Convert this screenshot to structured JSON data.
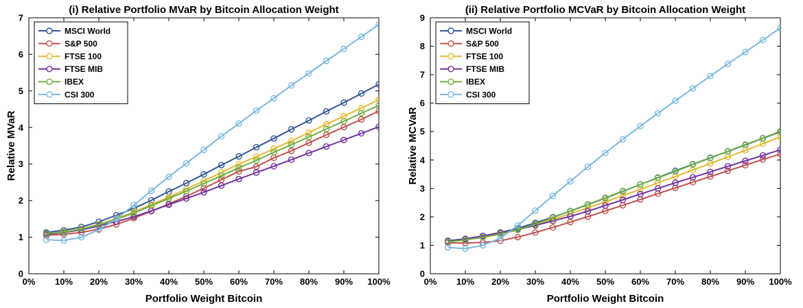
{
  "chart_data": [
    {
      "type": "line",
      "title": "(i) Relative Portfolio MVaR by Bitcoin Allocation Weight",
      "xlabel": "Portfolio Weight Bitcoin",
      "ylabel": "Relative MVaR",
      "xlim": [
        0,
        100
      ],
      "ylim": [
        0,
        7
      ],
      "xticks": [
        0,
        10,
        20,
        30,
        40,
        50,
        60,
        70,
        80,
        90,
        100
      ],
      "xtick_labels": [
        "0%",
        "10%",
        "20%",
        "30%",
        "40%",
        "50%",
        "60%",
        "70%",
        "80%",
        "90%",
        "100%"
      ],
      "yticks": [
        0,
        1,
        2,
        3,
        4,
        5,
        6,
        7
      ],
      "ytick_labels": [
        "0",
        "1",
        "2",
        "3",
        "4",
        "5",
        "6",
        "7"
      ],
      "grid": false,
      "legend_position": "top-left",
      "x": [
        5,
        10,
        15,
        20,
        25,
        30,
        35,
        40,
        45,
        50,
        55,
        60,
        65,
        70,
        75,
        80,
        85,
        90,
        95,
        100
      ],
      "series": [
        {
          "name": "MSCI World",
          "color": "#2f5597",
          "values": [
            1.13,
            1.19,
            1.28,
            1.42,
            1.6,
            1.79,
            2.01,
            2.25,
            2.48,
            2.72,
            2.97,
            3.21,
            3.46,
            3.7,
            3.95,
            4.19,
            4.44,
            4.68,
            4.93,
            5.18
          ]
        },
        {
          "name": "S&P 500",
          "color": "#c0504d",
          "values": [
            1.05,
            1.08,
            1.13,
            1.22,
            1.35,
            1.52,
            1.71,
            1.91,
            2.12,
            2.34,
            2.57,
            2.8,
            2.93,
            3.17,
            3.36,
            3.58,
            3.8,
            4.01,
            4.22,
            4.45
          ]
        },
        {
          "name": "FTSE 100",
          "color": "#e5b931",
          "values": [
            1.1,
            1.15,
            1.23,
            1.35,
            1.51,
            1.69,
            1.89,
            2.1,
            2.32,
            2.54,
            2.77,
            3.0,
            3.2,
            3.42,
            3.63,
            3.86,
            4.09,
            4.31,
            4.53,
            4.76
          ]
        },
        {
          "name": "FTSE MIB",
          "color": "#7030a0",
          "values": [
            1.08,
            1.13,
            1.2,
            1.31,
            1.43,
            1.56,
            1.72,
            1.89,
            2.06,
            2.23,
            2.41,
            2.59,
            2.77,
            2.94,
            3.12,
            3.3,
            3.48,
            3.66,
            3.84,
            4.02
          ]
        },
        {
          "name": "IBEX",
          "color": "#70ad47",
          "values": [
            1.1,
            1.14,
            1.22,
            1.34,
            1.49,
            1.66,
            1.86,
            2.06,
            2.26,
            2.47,
            2.68,
            2.9,
            3.1,
            3.32,
            3.53,
            3.74,
            3.96,
            4.17,
            4.39,
            4.6
          ]
        },
        {
          "name": "CSI 300",
          "color": "#7ab8e0",
          "values": [
            0.93,
            0.91,
            1.0,
            1.2,
            1.5,
            1.88,
            2.27,
            2.65,
            3.02,
            3.39,
            3.76,
            4.11,
            4.46,
            4.8,
            5.15,
            5.48,
            5.82,
            6.15,
            6.48,
            6.82
          ]
        }
      ]
    },
    {
      "type": "line",
      "title": "(ii) Relative Portfolio MCVaR by Bitcoin Allocation Weight",
      "xlabel": "Portfolio Weight Bitcoin",
      "ylabel": "Relative MCVaR",
      "xlim": [
        0,
        100
      ],
      "ylim": [
        0,
        9
      ],
      "xticks": [
        0,
        10,
        20,
        30,
        40,
        50,
        60,
        70,
        80,
        90,
        100
      ],
      "xtick_labels": [
        "0%",
        "10%",
        "20%",
        "30%",
        "40%",
        "50%",
        "60%",
        "70%",
        "80%",
        "90%",
        "100%"
      ],
      "yticks": [
        0,
        1,
        2,
        3,
        4,
        5,
        6,
        7,
        8,
        9
      ],
      "ytick_labels": [
        "0",
        "1",
        "2",
        "3",
        "4",
        "5",
        "6",
        "7",
        "8",
        "9"
      ],
      "grid": false,
      "legend_position": "top-left",
      "x": [
        5,
        10,
        15,
        20,
        25,
        30,
        35,
        40,
        45,
        50,
        55,
        60,
        65,
        70,
        75,
        80,
        85,
        90,
        95,
        100
      ],
      "series": [
        {
          "name": "MSCI World",
          "color": "#2f5597",
          "values": [
            1.16,
            1.23,
            1.33,
            1.45,
            1.6,
            1.79,
            1.99,
            2.2,
            2.43,
            2.66,
            2.9,
            3.14,
            3.38,
            3.62,
            3.85,
            4.08,
            4.3,
            4.53,
            4.76,
            4.99
          ]
        },
        {
          "name": "S&P 500",
          "color": "#c0504d",
          "values": [
            1.09,
            1.08,
            1.1,
            1.16,
            1.29,
            1.45,
            1.63,
            1.82,
            2.01,
            2.21,
            2.41,
            2.61,
            2.82,
            3.02,
            3.22,
            3.42,
            3.62,
            3.82,
            4.02,
            4.21
          ]
        },
        {
          "name": "FTSE 100",
          "color": "#e5b931",
          "values": [
            1.13,
            1.2,
            1.28,
            1.39,
            1.54,
            1.72,
            1.91,
            2.11,
            2.32,
            2.53,
            2.75,
            2.97,
            3.2,
            3.42,
            3.65,
            3.88,
            4.11,
            4.34,
            4.57,
            4.81
          ]
        },
        {
          "name": "FTSE MIB",
          "color": "#7030a0",
          "values": [
            1.13,
            1.22,
            1.33,
            1.44,
            1.56,
            1.7,
            1.86,
            2.02,
            2.2,
            2.4,
            2.6,
            2.8,
            3.0,
            3.2,
            3.39,
            3.58,
            3.78,
            3.97,
            4.16,
            4.36
          ]
        },
        {
          "name": "IBEX",
          "color": "#70ad47",
          "values": [
            1.12,
            1.19,
            1.28,
            1.4,
            1.55,
            1.75,
            1.97,
            2.21,
            2.44,
            2.67,
            2.91,
            3.14,
            3.37,
            3.6,
            3.84,
            4.07,
            4.31,
            4.54,
            4.77,
            5.01
          ]
        },
        {
          "name": "CSI 300",
          "color": "#7ab8e0",
          "values": [
            0.93,
            0.88,
            1.0,
            1.25,
            1.7,
            2.22,
            2.74,
            3.25,
            3.76,
            4.25,
            4.73,
            5.19,
            5.64,
            6.08,
            6.52,
            6.95,
            7.38,
            7.8,
            8.22,
            8.64
          ]
        }
      ]
    }
  ]
}
